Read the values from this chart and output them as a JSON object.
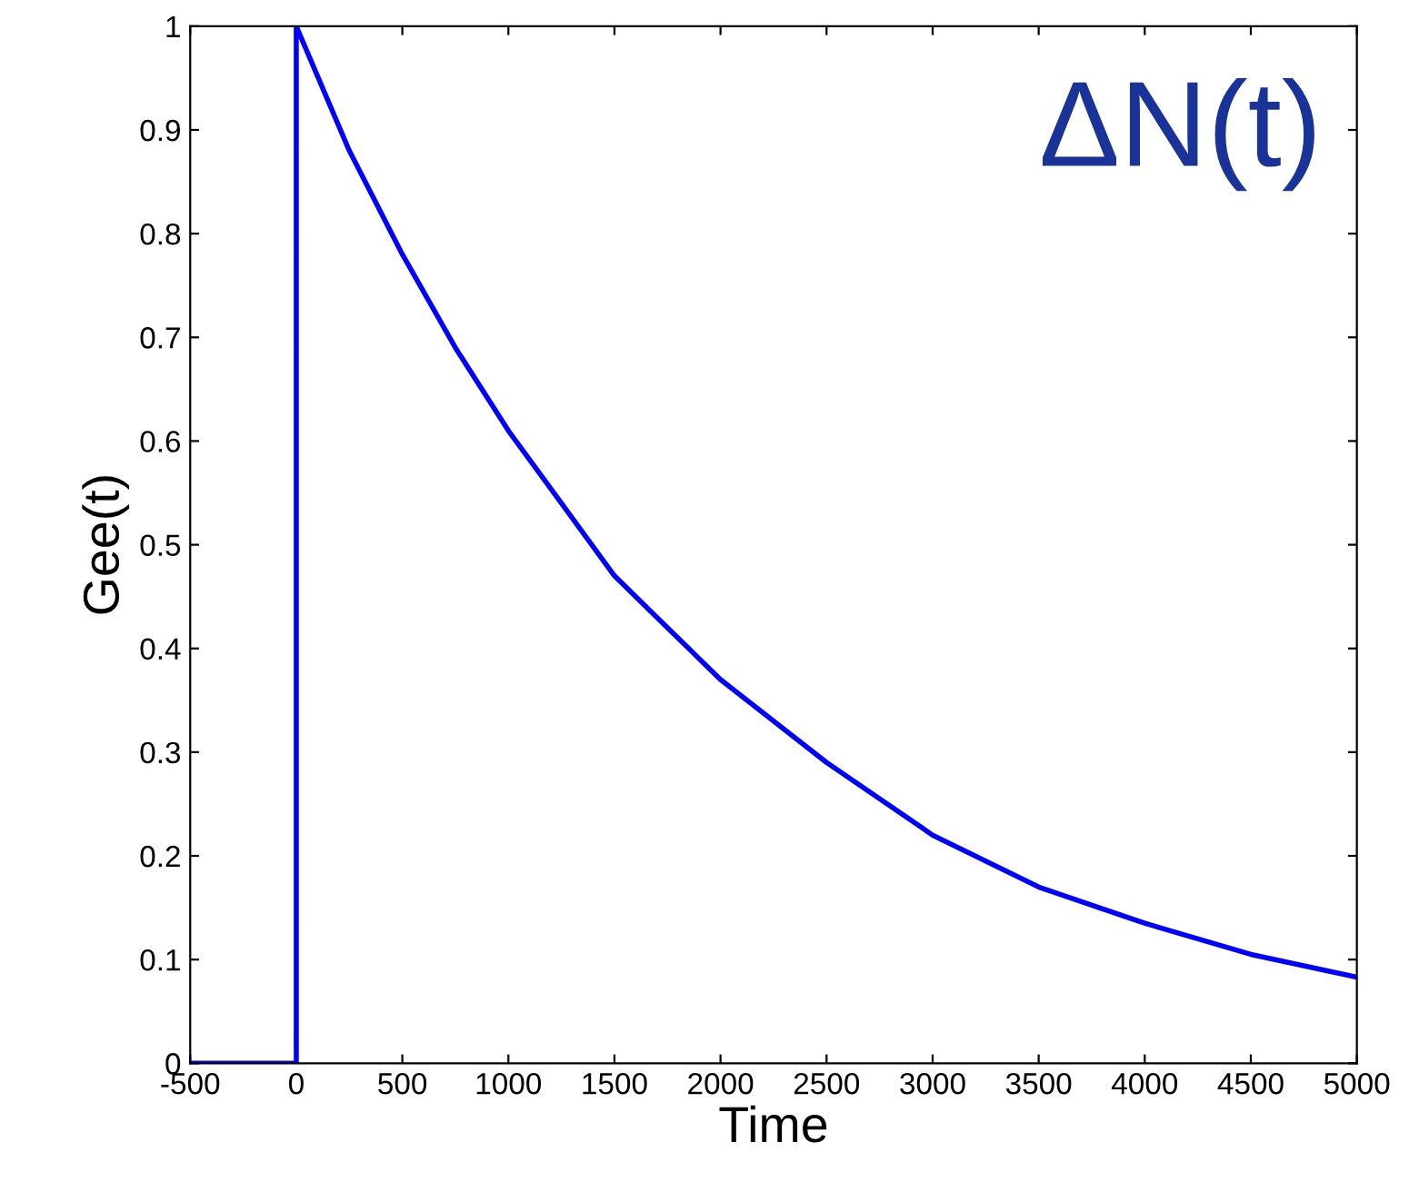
{
  "chart_data": {
    "type": "line",
    "xlabel": "Time",
    "ylabel": "Gee(t)",
    "annotations": [
      "ΔN(t)"
    ],
    "series": [
      {
        "color": "#0000ff",
        "x": [
          -500,
          0,
          0,
          250,
          500,
          750,
          1000,
          1250,
          1500,
          1750,
          2000,
          2500,
          3000,
          3500,
          4000,
          4500,
          5000
        ],
        "values": [
          0,
          0,
          1,
          0.88,
          0.78,
          0.69,
          0.61,
          0.54,
          0.47,
          0.42,
          0.37,
          0.29,
          0.22,
          0.17,
          0.135,
          0.105,
          0.083
        ]
      }
    ],
    "xlim": [
      -500,
      5000
    ],
    "ylim": [
      0,
      1
    ],
    "xticks": [
      -500,
      0,
      500,
      1000,
      1500,
      2000,
      2500,
      3000,
      3500,
      4000,
      4500,
      5000
    ],
    "yticks": [
      0,
      0.1,
      0.2,
      0.3,
      0.4,
      0.5,
      0.6,
      0.7,
      0.8,
      0.9,
      1
    ],
    "grid": false,
    "marker": "none",
    "line_style": "solid"
  }
}
